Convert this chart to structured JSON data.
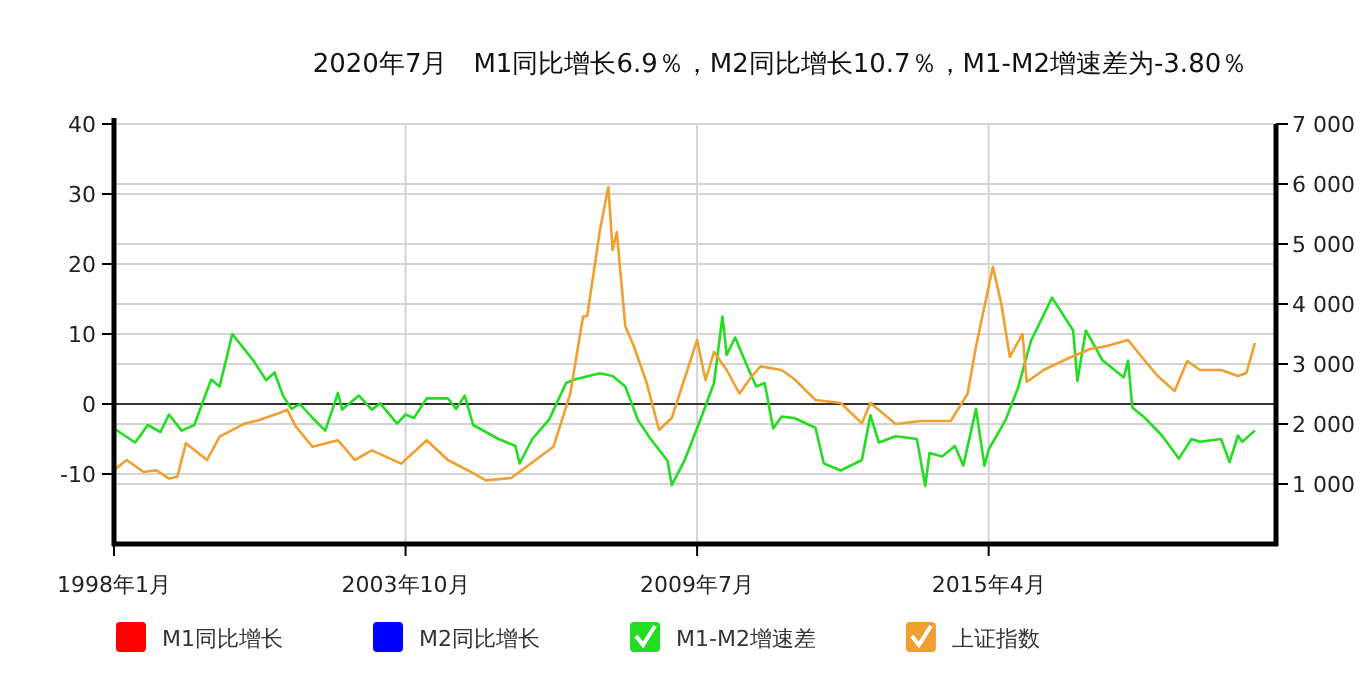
{
  "chart_data": {
    "type": "line",
    "title": "2020年7月　M1同比增长6.9％，M2同比增长10.7％，M1-M2增速差为-3.80％",
    "xlim": [
      "1998-01",
      "2020-12"
    ],
    "xticks": [
      {
        "value": "1998-01",
        "label": "1998年1月"
      },
      {
        "value": "2003-10",
        "label": "2003年10月"
      },
      {
        "value": "2009-07",
        "label": "2009年7月"
      },
      {
        "value": "2015-04",
        "label": "2015年4月"
      }
    ],
    "ylim": [
      -20,
      40
    ],
    "yticks": [
      -10,
      0,
      10,
      20,
      30,
      40
    ],
    "y2lim": [
      0,
      7000
    ],
    "y2ticks": [
      {
        "value": 1000,
        "label": "1 000"
      },
      {
        "value": 2000,
        "label": "2 000"
      },
      {
        "value": 3000,
        "label": "3 000"
      },
      {
        "value": 4000,
        "label": "4 000"
      },
      {
        "value": 5000,
        "label": "5 000"
      },
      {
        "value": 6000,
        "label": "6 000"
      },
      {
        "value": 7000,
        "label": "7 000"
      }
    ],
    "grid": true,
    "legend": "bottom",
    "marker": "none",
    "line_style": "solid",
    "ref_lines": [
      {
        "axis": "y",
        "value": 0,
        "color": "#333333"
      }
    ],
    "series": [
      {
        "name": "M1同比增长",
        "color": "#ff0000"
      },
      {
        "name": "M2同比增长",
        "color": "#0000ff"
      },
      {
        "name": "M1-M2增速差",
        "color": "#22dd22",
        "x": [
          "1998-01",
          "1998-06",
          "1998-09",
          "1998-12",
          "1999-02",
          "1999-05",
          "1999-08",
          "1999-12",
          "2000-02",
          "2000-05",
          "2000-10",
          "2001-01",
          "2001-03",
          "2001-05",
          "2001-07",
          "2001-09",
          "2001-12",
          "2002-03",
          "2002-06",
          "2002-07",
          "2002-11",
          "2003-02",
          "2003-04",
          "2003-08",
          "2003-10",
          "2003-12",
          "2004-03",
          "2004-08",
          "2004-10",
          "2004-12",
          "2005-02",
          "2005-08",
          "2005-12",
          "2006-01",
          "2006-04",
          "2006-08",
          "2006-12",
          "2007-02",
          "2007-08",
          "2007-11",
          "2008-02",
          "2008-05",
          "2008-08",
          "2008-12",
          "2009-01",
          "2009-04",
          "2009-08",
          "2009-11",
          "2010-01",
          "2010-02",
          "2010-04",
          "2010-07",
          "2010-09",
          "2010-11",
          "2011-01",
          "2011-03",
          "2011-06",
          "2011-11",
          "2012-01",
          "2012-05",
          "2012-10",
          "2012-12",
          "2013-02",
          "2013-06",
          "2013-11",
          "2014-01",
          "2014-02",
          "2014-05",
          "2014-08",
          "2014-10",
          "2015-01",
          "2015-03",
          "2015-04",
          "2015-08",
          "2015-11",
          "2016-02",
          "2016-07",
          "2016-12",
          "2017-01",
          "2017-03",
          "2017-07",
          "2017-12",
          "2018-01",
          "2018-02",
          "2018-05",
          "2018-09",
          "2019-01",
          "2019-04",
          "2019-06",
          "2019-11",
          "2020-01",
          "2020-03",
          "2020-04",
          "2020-07"
        ],
        "values": [
          -3.5,
          -5.5,
          -3,
          -4,
          -1.5,
          -3.8,
          -3,
          3.5,
          2.5,
          10,
          6.2,
          3.4,
          4.5,
          1.2,
          -0.7,
          0,
          -2,
          -3.8,
          1.6,
          -0.8,
          1.2,
          -0.8,
          0.1,
          -2.8,
          -1.5,
          -2,
          0.8,
          0.8,
          -0.7,
          1.2,
          -3,
          -5,
          -6,
          -8.5,
          -5,
          -2.2,
          3,
          3.5,
          4.4,
          4,
          2.5,
          -2.3,
          -5,
          -8.1,
          -11.6,
          -8.1,
          -1.9,
          3,
          12.5,
          7,
          9.5,
          5.2,
          2.5,
          3,
          -3.5,
          -1.8,
          -2,
          -3.4,
          -8.5,
          -9.5,
          -8,
          -1.6,
          -5.5,
          -4.6,
          -5,
          -11.7,
          -7,
          -7.5,
          -6,
          -8.8,
          -0.7,
          -8.8,
          -6.5,
          -2.3,
          2.4,
          9,
          15.2,
          10.5,
          3.3,
          10.5,
          6.2,
          3.8,
          6.2,
          -0.5,
          -2,
          -4.5,
          -7.8,
          -5,
          -5.4,
          -5,
          -8.3,
          -4.5,
          -5.4,
          -3.8
        ]
      },
      {
        "name": "上证指数",
        "color": "#f0a030",
        "axis": "y2",
        "x": [
          "1998-01",
          "1998-04",
          "1998-08",
          "1998-11",
          "1999-02",
          "1999-04",
          "1999-06",
          "1999-11",
          "2000-02",
          "2000-08",
          "2000-11",
          "2001-04",
          "2001-06",
          "2001-08",
          "2001-12",
          "2002-06",
          "2002-10",
          "2003-02",
          "2003-09",
          "2004-03",
          "2004-08",
          "2005-02",
          "2005-05",
          "2005-11",
          "2006-09",
          "2007-01",
          "2007-04",
          "2007-05",
          "2007-08",
          "2007-10",
          "2007-11",
          "2007-12",
          "2008-02",
          "2008-04",
          "2008-07",
          "2008-10",
          "2009-01",
          "2009-07",
          "2009-09",
          "2009-11",
          "2010-02",
          "2010-05",
          "2010-08",
          "2010-10",
          "2011-03",
          "2011-06",
          "2011-11",
          "2012-05",
          "2012-10",
          "2012-12",
          "2013-06",
          "2013-12",
          "2014-07",
          "2014-11",
          "2015-01",
          "2015-05",
          "2015-07",
          "2015-09",
          "2015-12",
          "2016-01",
          "2016-05",
          "2016-11",
          "2017-04",
          "2017-08",
          "2018-01",
          "2018-05",
          "2018-08",
          "2018-12",
          "2019-03",
          "2019-06",
          "2019-11",
          "2020-03",
          "2020-05",
          "2020-07"
        ],
        "values": [
          1230,
          1400,
          1200,
          1230,
          1090,
          1120,
          1680,
          1400,
          1790,
          2010,
          2060,
          2180,
          2240,
          1960,
          1620,
          1730,
          1400,
          1560,
          1340,
          1730,
          1400,
          1180,
          1060,
          1100,
          1620,
          2510,
          3790,
          3800,
          5230,
          5950,
          4900,
          5200,
          3630,
          3300,
          2700,
          1900,
          2100,
          3400,
          2730,
          3200,
          2900,
          2510,
          2800,
          2960,
          2900,
          2750,
          2400,
          2350,
          2010,
          2350,
          2000,
          2050,
          2050,
          2500,
          3290,
          4620,
          4000,
          3120,
          3500,
          2700,
          2900,
          3100,
          3250,
          3300,
          3400,
          3050,
          2800,
          2550,
          3050,
          2900,
          2900,
          2800,
          2850,
          3350
        ]
      }
    ]
  }
}
